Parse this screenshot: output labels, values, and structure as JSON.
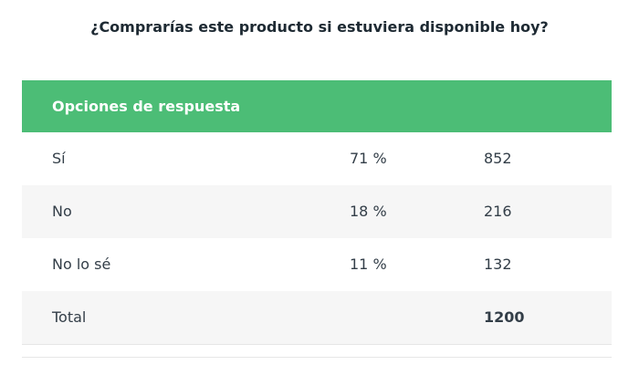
{
  "title": "¿Comprarías este producto si estuviera disponible hoy?",
  "table": {
    "header": "Opciones de respuesta",
    "rows": [
      [
        "Sí",
        "71 %",
        852
      ],
      [
        "No",
        "18 %",
        216
      ],
      [
        "No lo sé",
        "11 %",
        132
      ]
    ],
    "total": {
      "label": "Total",
      "count": 1200
    }
  }
}
